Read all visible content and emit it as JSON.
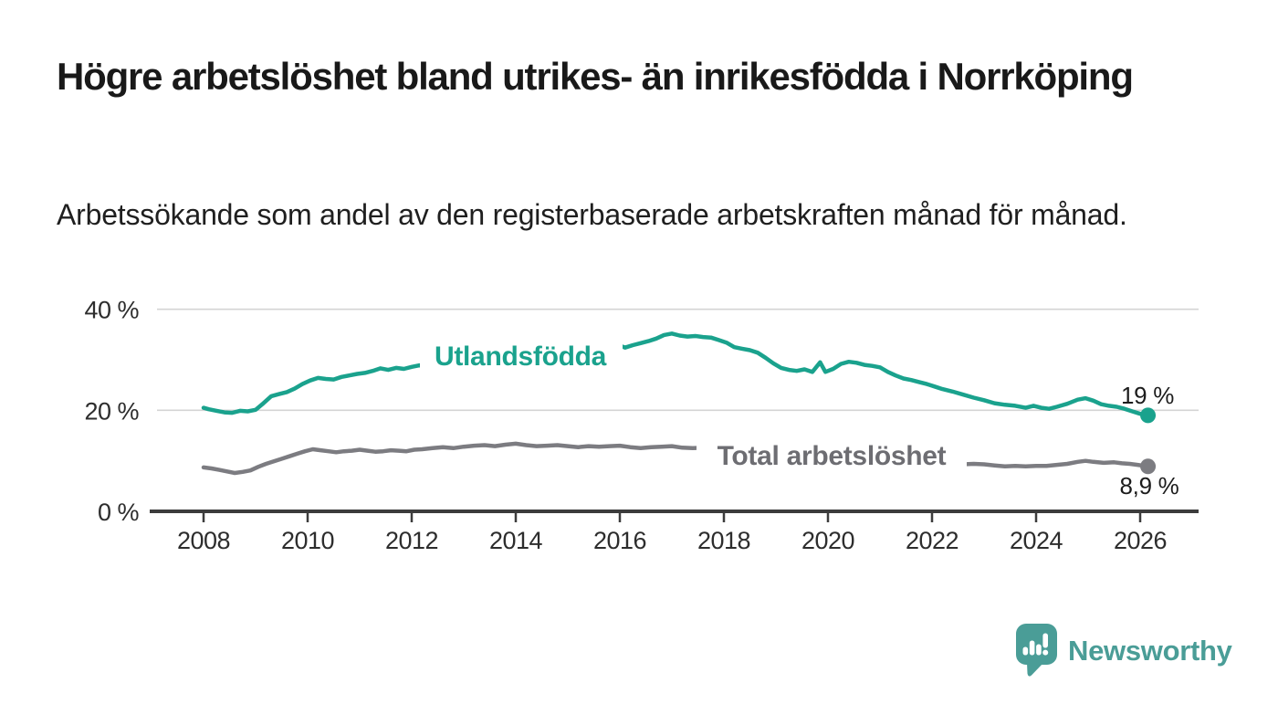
{
  "header": {
    "title": "Högre arbetslöshet bland utrikes- än inrikesfödda i Norrköping",
    "subtitle": "Arbetssökande som andel av den registerbaserade arbetskraften månad för månad."
  },
  "chart_data": {
    "type": "line",
    "unit": "%",
    "grid": "horizontal-only",
    "x_axis": {
      "ticks": [
        2008,
        2010,
        2012,
        2014,
        2016,
        2018,
        2020,
        2022,
        2024,
        2026
      ],
      "tick_labels": [
        "2008",
        "2010",
        "2012",
        "2014",
        "2016",
        "2018",
        "2020",
        "2022",
        "2024",
        "2026"
      ],
      "range": [
        2007.0,
        2027.1
      ]
    },
    "y_axis": {
      "ticks": [
        {
          "value": 0,
          "label": "0 %"
        },
        {
          "value": 20,
          "label": "20 %"
        },
        {
          "value": 40,
          "label": "40 %"
        }
      ],
      "range": [
        0,
        43
      ]
    },
    "series": [
      {
        "name": "Utlandsfödda",
        "color": "#1aa28d",
        "end_label": "19 %",
        "end_value": 19.0,
        "points": [
          [
            2008.0,
            20.5
          ],
          [
            2008.1,
            20.2
          ],
          [
            2008.25,
            19.9
          ],
          [
            2008.4,
            19.6
          ],
          [
            2008.55,
            19.5
          ],
          [
            2008.7,
            19.9
          ],
          [
            2008.85,
            19.8
          ],
          [
            2009.0,
            20.1
          ],
          [
            2009.15,
            21.4
          ],
          [
            2009.3,
            22.8
          ],
          [
            2009.45,
            23.2
          ],
          [
            2009.6,
            23.6
          ],
          [
            2009.75,
            24.3
          ],
          [
            2009.9,
            25.2
          ],
          [
            2010.05,
            25.9
          ],
          [
            2010.2,
            26.4
          ],
          [
            2010.35,
            26.2
          ],
          [
            2010.5,
            26.1
          ],
          [
            2010.65,
            26.6
          ],
          [
            2010.8,
            26.9
          ],
          [
            2010.95,
            27.2
          ],
          [
            2011.1,
            27.4
          ],
          [
            2011.25,
            27.8
          ],
          [
            2011.4,
            28.3
          ],
          [
            2011.55,
            28.0
          ],
          [
            2011.7,
            28.4
          ],
          [
            2011.85,
            28.2
          ],
          [
            2012.0,
            28.6
          ],
          [
            2012.15,
            28.9
          ],
          [
            2012.3,
            28.7
          ],
          [
            2012.45,
            29.0
          ],
          [
            2012.7,
            29.4
          ],
          [
            2013.0,
            29.9
          ],
          [
            2013.3,
            30.3
          ],
          [
            2013.6,
            30.7
          ],
          [
            2013.9,
            31.0
          ],
          [
            2014.2,
            31.3
          ],
          [
            2014.5,
            31.6
          ],
          [
            2014.8,
            31.9
          ],
          [
            2015.1,
            32.2
          ],
          [
            2015.4,
            32.4
          ],
          [
            2015.7,
            32.7
          ],
          [
            2015.95,
            33.0
          ],
          [
            2016.1,
            32.4
          ],
          [
            2016.25,
            32.9
          ],
          [
            2016.4,
            33.3
          ],
          [
            2016.55,
            33.7
          ],
          [
            2016.7,
            34.2
          ],
          [
            2016.85,
            34.9
          ],
          [
            2017.0,
            35.2
          ],
          [
            2017.15,
            34.8
          ],
          [
            2017.3,
            34.6
          ],
          [
            2017.45,
            34.7
          ],
          [
            2017.6,
            34.5
          ],
          [
            2017.75,
            34.4
          ],
          [
            2017.9,
            33.9
          ],
          [
            2018.05,
            33.4
          ],
          [
            2018.2,
            32.5
          ],
          [
            2018.35,
            32.2
          ],
          [
            2018.5,
            31.9
          ],
          [
            2018.65,
            31.4
          ],
          [
            2018.8,
            30.4
          ],
          [
            2018.95,
            29.3
          ],
          [
            2019.1,
            28.4
          ],
          [
            2019.25,
            28.0
          ],
          [
            2019.4,
            27.8
          ],
          [
            2019.55,
            28.1
          ],
          [
            2019.7,
            27.6
          ],
          [
            2019.85,
            29.5
          ],
          [
            2019.95,
            27.6
          ],
          [
            2020.1,
            28.2
          ],
          [
            2020.25,
            29.2
          ],
          [
            2020.4,
            29.6
          ],
          [
            2020.55,
            29.4
          ],
          [
            2020.7,
            29.0
          ],
          [
            2020.85,
            28.8
          ],
          [
            2021.0,
            28.5
          ],
          [
            2021.15,
            27.6
          ],
          [
            2021.3,
            26.9
          ],
          [
            2021.45,
            26.3
          ],
          [
            2021.6,
            26.0
          ],
          [
            2021.75,
            25.6
          ],
          [
            2021.9,
            25.2
          ],
          [
            2022.05,
            24.7
          ],
          [
            2022.2,
            24.2
          ],
          [
            2022.4,
            23.7
          ],
          [
            2022.6,
            23.1
          ],
          [
            2022.8,
            22.5
          ],
          [
            2023.0,
            22.0
          ],
          [
            2023.2,
            21.4
          ],
          [
            2023.4,
            21.1
          ],
          [
            2023.6,
            20.9
          ],
          [
            2023.8,
            20.5
          ],
          [
            2023.95,
            20.9
          ],
          [
            2024.1,
            20.5
          ],
          [
            2024.25,
            20.3
          ],
          [
            2024.4,
            20.7
          ],
          [
            2024.6,
            21.3
          ],
          [
            2024.8,
            22.1
          ],
          [
            2024.95,
            22.4
          ],
          [
            2025.1,
            21.9
          ],
          [
            2025.25,
            21.2
          ],
          [
            2025.4,
            20.9
          ],
          [
            2025.55,
            20.7
          ],
          [
            2025.7,
            20.3
          ],
          [
            2025.85,
            19.8
          ],
          [
            2026.0,
            19.3
          ],
          [
            2026.15,
            19.0
          ]
        ]
      },
      {
        "name": "Total arbetslöshet",
        "color": "#7c7c81",
        "label_color": "#6d6d72",
        "end_label": "8,9 %",
        "end_value": 8.9,
        "points": [
          [
            2008.0,
            8.7
          ],
          [
            2008.15,
            8.5
          ],
          [
            2008.3,
            8.2
          ],
          [
            2008.45,
            7.9
          ],
          [
            2008.6,
            7.6
          ],
          [
            2008.75,
            7.8
          ],
          [
            2008.9,
            8.1
          ],
          [
            2009.05,
            8.8
          ],
          [
            2009.2,
            9.4
          ],
          [
            2009.35,
            9.9
          ],
          [
            2009.5,
            10.4
          ],
          [
            2009.65,
            10.9
          ],
          [
            2009.8,
            11.4
          ],
          [
            2009.95,
            11.9
          ],
          [
            2010.1,
            12.3
          ],
          [
            2010.25,
            12.1
          ],
          [
            2010.4,
            11.9
          ],
          [
            2010.55,
            11.7
          ],
          [
            2010.7,
            11.9
          ],
          [
            2010.85,
            12.0
          ],
          [
            2011.0,
            12.2
          ],
          [
            2011.15,
            12.0
          ],
          [
            2011.3,
            11.8
          ],
          [
            2011.45,
            11.9
          ],
          [
            2011.6,
            12.1
          ],
          [
            2011.75,
            12.0
          ],
          [
            2011.9,
            11.9
          ],
          [
            2012.05,
            12.2
          ],
          [
            2012.2,
            12.3
          ],
          [
            2012.4,
            12.5
          ],
          [
            2012.6,
            12.7
          ],
          [
            2012.8,
            12.5
          ],
          [
            2013.0,
            12.8
          ],
          [
            2013.2,
            13.0
          ],
          [
            2013.4,
            13.1
          ],
          [
            2013.6,
            12.9
          ],
          [
            2013.8,
            13.2
          ],
          [
            2014.0,
            13.4
          ],
          [
            2014.2,
            13.1
          ],
          [
            2014.4,
            12.9
          ],
          [
            2014.6,
            13.0
          ],
          [
            2014.8,
            13.1
          ],
          [
            2015.0,
            12.9
          ],
          [
            2015.2,
            12.7
          ],
          [
            2015.4,
            12.9
          ],
          [
            2015.6,
            12.8
          ],
          [
            2015.8,
            12.9
          ],
          [
            2016.0,
            13.0
          ],
          [
            2016.2,
            12.7
          ],
          [
            2016.4,
            12.5
          ],
          [
            2016.6,
            12.7
          ],
          [
            2016.8,
            12.8
          ],
          [
            2017.0,
            12.9
          ],
          [
            2017.2,
            12.6
          ],
          [
            2017.4,
            12.5
          ],
          [
            2017.6,
            12.6
          ],
          [
            2017.85,
            12.4
          ],
          [
            2018.15,
            12.1
          ],
          [
            2018.45,
            11.8
          ],
          [
            2018.75,
            11.5
          ],
          [
            2019.05,
            11.3
          ],
          [
            2019.35,
            11.2
          ],
          [
            2019.65,
            11.1
          ],
          [
            2019.95,
            11.4
          ],
          [
            2020.25,
            12.0
          ],
          [
            2020.55,
            12.6
          ],
          [
            2020.85,
            12.5
          ],
          [
            2021.15,
            12.0
          ],
          [
            2021.45,
            11.4
          ],
          [
            2021.75,
            10.8
          ],
          [
            2022.05,
            10.2
          ],
          [
            2022.25,
            9.7
          ],
          [
            2022.45,
            9.4
          ],
          [
            2022.6,
            9.3
          ],
          [
            2022.8,
            9.4
          ],
          [
            2023.0,
            9.3
          ],
          [
            2023.2,
            9.1
          ],
          [
            2023.4,
            8.9
          ],
          [
            2023.6,
            9.0
          ],
          [
            2023.8,
            8.9
          ],
          [
            2024.0,
            9.0
          ],
          [
            2024.2,
            9.0
          ],
          [
            2024.4,
            9.2
          ],
          [
            2024.6,
            9.4
          ],
          [
            2024.8,
            9.8
          ],
          [
            2024.95,
            10.0
          ],
          [
            2025.1,
            9.8
          ],
          [
            2025.3,
            9.6
          ],
          [
            2025.5,
            9.7
          ],
          [
            2025.65,
            9.5
          ],
          [
            2025.8,
            9.4
          ],
          [
            2025.95,
            9.2
          ],
          [
            2026.15,
            8.9
          ]
        ]
      }
    ],
    "title": "Högre arbetslöshet bland utrikes- än inrikesfödda i Norrköping",
    "xlabel": "",
    "ylabel": "",
    "legend_position": "inline-labels"
  },
  "colors": {
    "accent_teal": "#1aa28d",
    "neutral_gray": "#7c7c81",
    "grid": "#d4d4d4",
    "axis": "#3c3c3c",
    "brand_teal": "#4a9d97"
  },
  "footer": {
    "brand": "Newsworthy"
  }
}
